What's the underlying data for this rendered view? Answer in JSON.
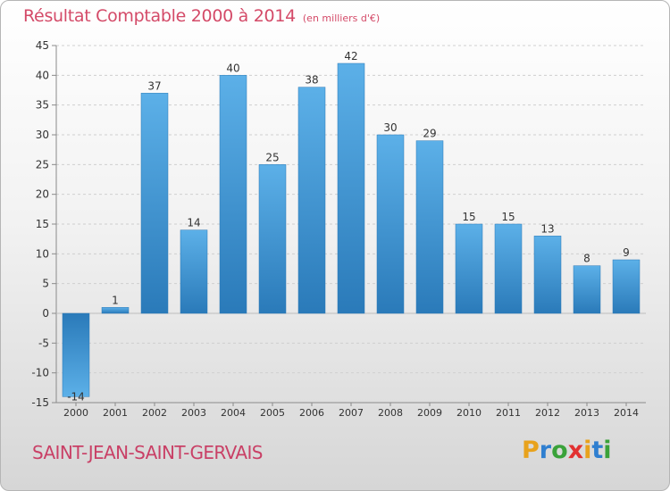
{
  "header": {
    "title": "Résultat Comptable 2000 à 2014",
    "subtitle": "(en milliers d'€)"
  },
  "footer": {
    "commune": "SAINT-JEAN-SAINT-GERVAIS",
    "logo": "Proxiti"
  },
  "colors": {
    "bar_top": "#5aaee6",
    "bar_bottom": "#2878b8",
    "title": "#d44a68",
    "axis": "#8a8a8a"
  },
  "chart_data": {
    "type": "bar",
    "title": "Résultat Comptable 2000 à 2014",
    "subtitle": "(en milliers d'€)",
    "xlabel": "",
    "ylabel": "",
    "ylim": [
      -15,
      45
    ],
    "yticks": [
      -15,
      -10,
      -5,
      0,
      5,
      10,
      15,
      20,
      25,
      30,
      35,
      40,
      45
    ],
    "grid": true,
    "categories": [
      "2000",
      "2001",
      "2002",
      "2003",
      "2004",
      "2005",
      "2006",
      "2007",
      "2008",
      "2009",
      "2010",
      "2011",
      "2012",
      "2013",
      "2014"
    ],
    "values": [
      -14,
      1,
      37,
      14,
      40,
      25,
      38,
      42,
      30,
      29,
      15,
      15,
      13,
      8,
      9
    ]
  }
}
